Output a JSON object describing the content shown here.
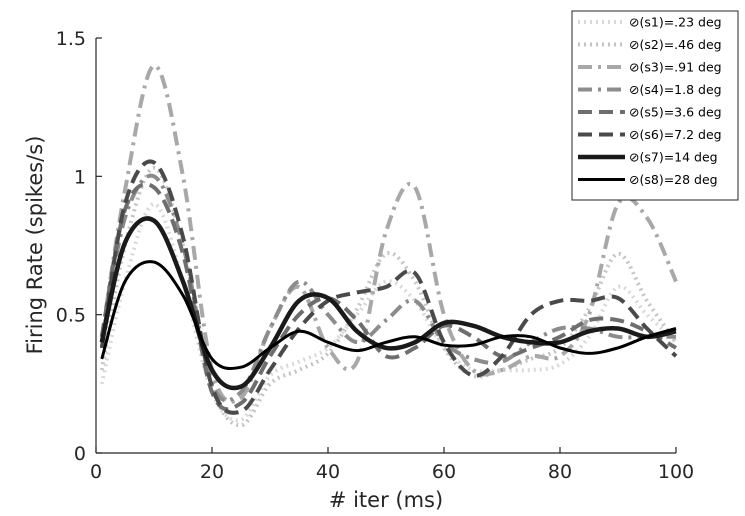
{
  "chart_data": {
    "type": "line",
    "title": "",
    "xlabel": "# iter (ms)",
    "ylabel": "Firing Rate (spikes/s)",
    "xlim": [
      0,
      100
    ],
    "ylim": [
      0,
      1.5
    ],
    "xticks": [
      "0",
      "20",
      "40",
      "60",
      "80",
      "100"
    ],
    "yticks": [
      "0",
      "0.5",
      "1",
      "1.5"
    ],
    "grid": false,
    "legend_position": "top-right",
    "x": [
      1,
      5,
      10,
      15,
      20,
      25,
      30,
      35,
      40,
      45,
      50,
      55,
      60,
      65,
      70,
      75,
      80,
      85,
      90,
      95,
      100
    ],
    "series": [
      {
        "name": "⊘(s1)=.23 deg",
        "color": "#d9d9d9",
        "dash": "2,4",
        "width": 4,
        "values": [
          0.25,
          0.62,
          0.9,
          0.62,
          0.22,
          0.12,
          0.28,
          0.33,
          0.38,
          0.5,
          0.62,
          0.55,
          0.38,
          0.3,
          0.3,
          0.3,
          0.32,
          0.42,
          0.6,
          0.5,
          0.4
        ]
      },
      {
        "name": "⊘(s2)=.46 deg",
        "color": "#c4c4c4",
        "dash": "2,4",
        "width": 4,
        "values": [
          0.3,
          0.75,
          1.03,
          0.75,
          0.24,
          0.1,
          0.25,
          0.3,
          0.36,
          0.52,
          0.72,
          0.62,
          0.38,
          0.28,
          0.3,
          0.34,
          0.38,
          0.52,
          0.72,
          0.55,
          0.4
        ]
      },
      {
        "name": "⊘(s3)=.91 deg",
        "color": "#a8a8a8",
        "dash": "14,6,3,6",
        "width": 4,
        "values": [
          0.42,
          0.95,
          1.4,
          1.0,
          0.3,
          0.2,
          0.45,
          0.6,
          0.38,
          0.33,
          0.8,
          0.96,
          0.5,
          0.3,
          0.3,
          0.35,
          0.35,
          0.5,
          0.9,
          0.85,
          0.62
        ]
      },
      {
        "name": "⊘(s4)=1.8 deg",
        "color": "#8c8c8c",
        "dash": "14,6,3,6",
        "width": 4,
        "values": [
          0.4,
          0.85,
          1.0,
          0.75,
          0.25,
          0.22,
          0.45,
          0.62,
          0.5,
          0.4,
          0.48,
          0.55,
          0.4,
          0.34,
          0.33,
          0.4,
          0.45,
          0.45,
          0.42,
          0.42,
          0.42
        ]
      },
      {
        "name": "⊘(s5)=3.6 deg",
        "color": "#6e6e6e",
        "dash": "14,7",
        "width": 4,
        "values": [
          0.42,
          0.88,
          0.96,
          0.72,
          0.22,
          0.18,
          0.35,
          0.5,
          0.56,
          0.48,
          0.35,
          0.38,
          0.46,
          0.42,
          0.35,
          0.38,
          0.42,
          0.48,
          0.48,
          0.44,
          0.38
        ]
      },
      {
        "name": "⊘(s6)=7.2 deg",
        "color": "#4a4a4a",
        "dash": "14,7",
        "width": 4,
        "values": [
          0.38,
          0.9,
          1.05,
          0.78,
          0.24,
          0.15,
          0.3,
          0.45,
          0.55,
          0.58,
          0.6,
          0.65,
          0.4,
          0.28,
          0.35,
          0.5,
          0.55,
          0.55,
          0.56,
          0.45,
          0.35
        ]
      },
      {
        "name": "⊘(s7)=14 deg",
        "color": "#1a1a1a",
        "dash": "none",
        "width": 4.5,
        "values": [
          0.4,
          0.76,
          0.84,
          0.62,
          0.3,
          0.24,
          0.38,
          0.55,
          0.56,
          0.44,
          0.38,
          0.4,
          0.47,
          0.46,
          0.42,
          0.4,
          0.4,
          0.44,
          0.45,
          0.42,
          0.44
        ]
      },
      {
        "name": "⊘(s8)=28 deg",
        "color": "#000000",
        "dash": "none",
        "width": 3,
        "values": [
          0.34,
          0.62,
          0.69,
          0.57,
          0.34,
          0.31,
          0.38,
          0.44,
          0.4,
          0.37,
          0.4,
          0.42,
          0.39,
          0.39,
          0.42,
          0.42,
          0.38,
          0.36,
          0.38,
          0.42,
          0.45
        ]
      }
    ]
  }
}
